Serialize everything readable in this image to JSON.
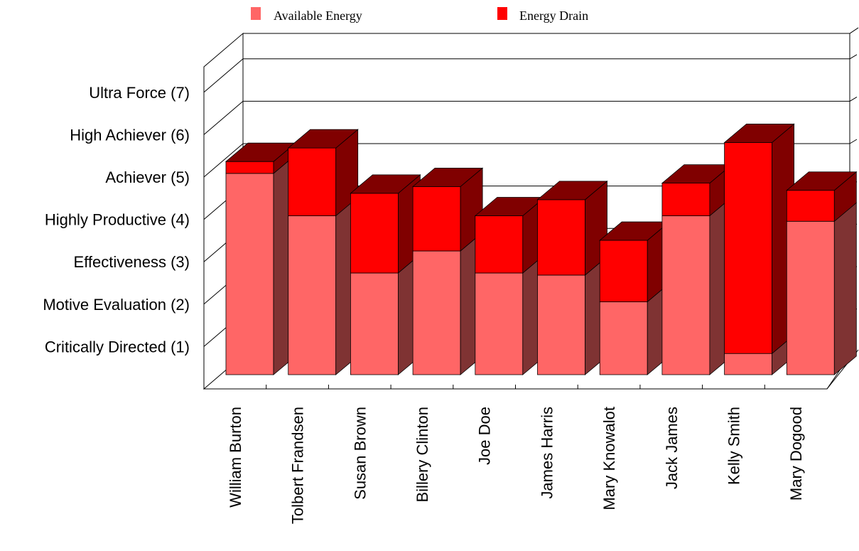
{
  "chart_data": {
    "type": "bar",
    "stacked": true,
    "three_d": true,
    "categories": [
      "William Burton",
      "Tolbert Frandsen",
      "Susan Brown",
      "Billery Clinton",
      "Joe Doe",
      "James Harris",
      "Mary Knowalot",
      "Jack James",
      "Kelly Smith",
      "Mary Dogood"
    ],
    "series": [
      {
        "name": "Available Energy",
        "color": "#ff6666",
        "values": [
          4.75,
          3.75,
          2.4,
          2.92,
          2.4,
          2.35,
          1.72,
          3.75,
          0.5,
          3.62
        ]
      },
      {
        "name": "Energy Drain",
        "color": "#ff0000",
        "values": [
          0.28,
          1.6,
          1.88,
          1.52,
          1.35,
          1.78,
          1.45,
          0.77,
          4.98,
          0.73
        ]
      }
    ],
    "y_tick_labels": [
      "Critically Directed (1)",
      "Motive Evaluation (2)",
      "Effectiveness (3)",
      "Highly Productive (4)",
      "Achiever (5)",
      "High Achiever (6)",
      "Ultra Force (7)"
    ],
    "y_tick_values": [
      1,
      2,
      3,
      4,
      5,
      6,
      7
    ],
    "ylim": [
      0,
      7.6
    ],
    "grid": true,
    "legend_position": "top-center"
  },
  "colors": {
    "available_side": "#7f3333",
    "drain_side": "#800000",
    "top": "#800000",
    "grid": "#000000"
  }
}
